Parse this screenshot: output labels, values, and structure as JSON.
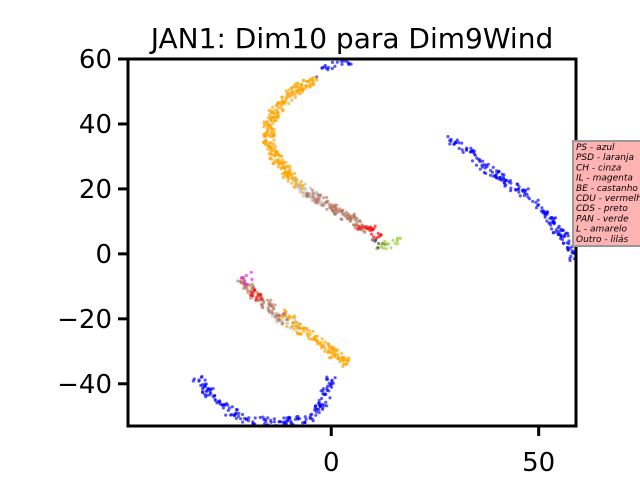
{
  "chart_data": {
    "type": "scatter",
    "title": "JAN1: Dim10 para Dim9Wind",
    "xlabel": "",
    "ylabel": "",
    "xlim": [
      -49,
      59
    ],
    "ylim": [
      -53,
      60
    ],
    "x_ticks": [
      0,
      50
    ],
    "y_ticks": [
      60,
      40,
      20,
      0,
      -20,
      -40
    ],
    "x_tick_labels": [
      "0",
      "50"
    ],
    "y_tick_labels": [
      "60",
      "40",
      "20",
      "0",
      "−20",
      "−40"
    ],
    "grid": false,
    "legend_position": "right",
    "legend": [
      "PS - azul",
      "PSD - laranja",
      "CH - cinza",
      "IL - magenta",
      "BE - castanho",
      "CDU - vermelho",
      "CDS - preto",
      "PAN - verde",
      "L - amarelo",
      "Outro - lilás"
    ],
    "legend_bg": "#ffb3b3",
    "series": [
      {
        "color": "#0000ff",
        "segments": [
          {
            "points": [
              [
                -3,
                55
              ],
              [
                0,
                58
              ],
              [
                3,
                59
              ],
              [
                5,
                60
              ]
            ],
            "n": 22
          },
          {
            "points": [
              [
                29,
                35
              ],
              [
                33,
                32
              ],
              [
                36,
                28
              ],
              [
                40,
                24
              ],
              [
                44,
                21
              ],
              [
                48,
                17
              ],
              [
                52,
                12
              ],
              [
                55,
                7
              ],
              [
                58,
                2
              ],
              [
                59,
                -3
              ]
            ],
            "n": 200
          },
          {
            "points": [
              [
                -32,
                -38
              ],
              [
                -29,
                -43
              ],
              [
                -25,
                -48
              ],
              [
                -20,
                -51
              ],
              [
                -13,
                -52
              ],
              [
                -6,
                -51
              ],
              [
                -3,
                -48
              ],
              [
                -1,
                -42
              ],
              [
                0,
                -37
              ]
            ],
            "n": 180
          }
        ]
      },
      {
        "color": "#ffa500",
        "segments": [
          {
            "points": [
              [
                -4,
                54
              ],
              [
                -9,
                50
              ],
              [
                -13,
                45
              ],
              [
                -15,
                40
              ],
              [
                -15,
                34
              ],
              [
                -13,
                29
              ],
              [
                -10,
                24
              ],
              [
                -7,
                20
              ]
            ],
            "n": 300
          },
          {
            "points": [
              [
                -12,
                -18
              ],
              [
                -8,
                -23
              ],
              [
                -4,
                -26
              ],
              [
                -1,
                -29
              ],
              [
                2,
                -32
              ],
              [
                4,
                -34
              ]
            ],
            "n": 140
          }
        ]
      },
      {
        "color": "#c0c0c0",
        "segments": [
          {
            "points": [
              [
                -9,
                22
              ],
              [
                -6,
                19
              ],
              [
                -3,
                16
              ]
            ],
            "n": 45
          },
          {
            "points": [
              [
                -16,
                -17
              ],
              [
                -12,
                -20
              ],
              [
                -9,
                -22
              ]
            ],
            "n": 25
          }
        ]
      },
      {
        "color": "#b5755e",
        "segments": [
          {
            "points": [
              [
                -6,
                19
              ],
              [
                -2,
                16
              ],
              [
                2,
                13
              ],
              [
                6,
                10
              ],
              [
                9,
                7
              ]
            ],
            "n": 110
          },
          {
            "points": [
              [
                -22,
                -8
              ],
              [
                -19,
                -12
              ],
              [
                -16,
                -15
              ],
              [
                -13,
                -18
              ],
              [
                -11,
                -21
              ]
            ],
            "n": 80
          }
        ]
      },
      {
        "color": "#ff0000",
        "segments": [
          {
            "points": [
              [
                7,
                9
              ],
              [
                10,
                7
              ],
              [
                12,
                5
              ]
            ],
            "n": 22
          },
          {
            "points": [
              [
                -19,
                -12
              ],
              [
                -17,
                -14
              ]
            ],
            "n": 12
          }
        ]
      },
      {
        "color": "#404040",
        "segments": [
          {
            "points": [
              [
                10,
                3
              ],
              [
                12,
                3
              ]
            ],
            "n": 8
          }
        ]
      },
      {
        "color": "#9acd32",
        "segments": [
          {
            "points": [
              [
                11,
                2
              ],
              [
                13,
                3
              ],
              [
                16,
                4
              ]
            ],
            "n": 18
          }
        ]
      },
      {
        "color": "#ff00ff",
        "segments": [
          {
            "points": [
              [
                -21,
                -6
              ],
              [
                -19,
                -9
              ]
            ],
            "n": 6
          }
        ]
      }
    ]
  }
}
